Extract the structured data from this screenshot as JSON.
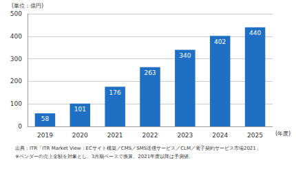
{
  "chart_data": {
    "type": "bar",
    "y_label": "(単位：億円)",
    "x_label": "(年度)",
    "annotations": [
      "出典：ITR「ITR Market View：ECサイト構築／CMS／SMS送信サービス／CLM／電子契約サービス市場2021」",
      "※ベンダーの売上金額を対象とし、3月期ベースで換算。2021年度以降は予測値。"
    ],
    "categories": [
      "2019",
      "2020",
      "2021",
      "2022",
      "2023",
      "2024",
      "2025"
    ],
    "values": [
      58,
      101,
      176,
      263,
      340,
      402,
      440
    ],
    "color": "#1f6fc5",
    "ylim": [
      0,
      500
    ],
    "yticks": [
      0,
      100,
      200,
      300,
      400,
      500
    ],
    "grid": true,
    "data_labels": true
  }
}
